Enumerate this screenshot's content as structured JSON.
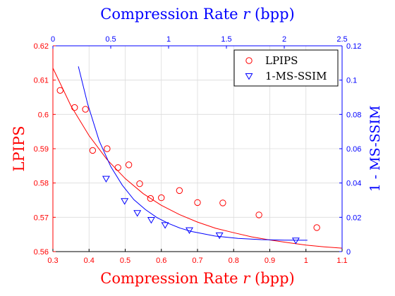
{
  "chart_data": {
    "type": "scatter",
    "title": "Compression Rate r (bpp)",
    "title_parts": {
      "pre": "Compression Rate ",
      "var": "r",
      "post": " (bpp)"
    },
    "xlabel": "Compression Rate r (bpp)",
    "xlabel_parts": {
      "pre": "Compression Rate ",
      "var": "r",
      "post": " (bpp)"
    },
    "ylabel": "LPIPS",
    "ylabel_right": "1 - MS-SSIM",
    "xlim": [
      0.3,
      1.1
    ],
    "ylim": [
      0.56,
      0.62
    ],
    "x2lim": [
      0,
      2.5
    ],
    "y2lim": [
      0,
      0.12
    ],
    "x_ticks": [
      "0.3",
      "0.4",
      "0.5",
      "0.6",
      "0.7",
      "0.8",
      "0.9",
      "1",
      "1.1"
    ],
    "y_ticks": [
      "0.56",
      "0.57",
      "0.58",
      "0.59",
      "0.6",
      "0.61",
      "0.62"
    ],
    "x2_ticks": [
      "0",
      "0.5",
      "1",
      "1.5",
      "2",
      "2.5"
    ],
    "y2_ticks": [
      "0",
      "0.02",
      "0.04",
      "0.06",
      "0.08",
      "0.1",
      "0.12"
    ],
    "grid": true,
    "legend_position": "top-right",
    "colors": {
      "lpips": "#ff0000",
      "msssim": "#0000ff",
      "grid": "#dcdcdc",
      "frame": "#000000"
    },
    "series": [
      {
        "name": "LPIPS",
        "axes": "bottom-left",
        "marker": "circle",
        "color": "#ff0000",
        "x": [
          0.32,
          0.36,
          0.39,
          0.41,
          0.45,
          0.48,
          0.51,
          0.54,
          0.57,
          0.6,
          0.65,
          0.7,
          0.77,
          0.87,
          1.03
        ],
        "y": [
          0.607,
          0.602,
          0.6015,
          0.5895,
          0.59,
          0.5845,
          0.5853,
          0.5798,
          0.5755,
          0.5757,
          0.5778,
          0.5743,
          0.5742,
          0.5707,
          0.567
        ],
        "fit_x": [
          0.3,
          0.35,
          0.4,
          0.45,
          0.5,
          0.55,
          0.6,
          0.65,
          0.7,
          0.75,
          0.8,
          0.85,
          0.9,
          0.95,
          1.0,
          1.05,
          1.1
        ],
        "fit_y": [
          0.6135,
          0.6025,
          0.5938,
          0.5868,
          0.5813,
          0.5769,
          0.5735,
          0.5708,
          0.5686,
          0.5668,
          0.5655,
          0.5643,
          0.5634,
          0.5626,
          0.5619,
          0.5614,
          0.561
        ]
      },
      {
        "name": "1-MS-SSIM",
        "axes": "top-right",
        "marker": "triangle-down",
        "color": "#0000ff",
        "x": [
          0.46,
          0.62,
          0.73,
          0.85,
          0.97,
          1.18,
          1.44,
          2.1
        ],
        "y": [
          0.0425,
          0.0295,
          0.0225,
          0.0185,
          0.0155,
          0.0125,
          0.0095,
          0.0065
        ],
        "fit_x": [
          0.22,
          0.3,
          0.4,
          0.5,
          0.6,
          0.7,
          0.8,
          0.9,
          1.0,
          1.1,
          1.2,
          1.4,
          1.6,
          1.8,
          2.0,
          2.2
        ],
        "fit_y": [
          0.108,
          0.0862,
          0.0646,
          0.0496,
          0.0387,
          0.0303,
          0.0245,
          0.0198,
          0.0164,
          0.0137,
          0.0117,
          0.0091,
          0.0077,
          0.007,
          0.0067,
          0.0066
        ]
      }
    ]
  }
}
